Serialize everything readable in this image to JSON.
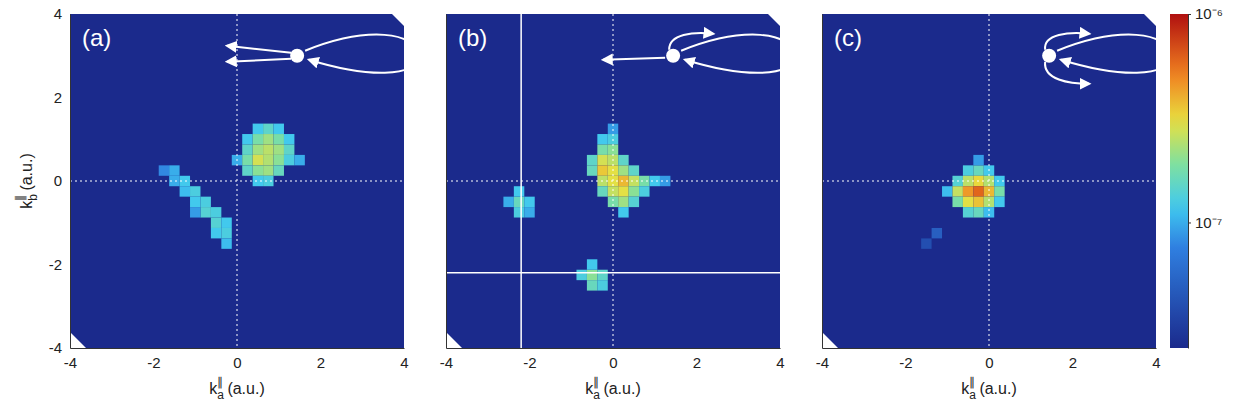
{
  "chart_data": [
    {
      "type": "heatmap",
      "label": "(a)",
      "xlabel": {
        "text": "k",
        "sub": "a",
        "sup": "∥",
        "unit": "(a.u.)"
      },
      "ylabel": {
        "text": "k",
        "sub": "b",
        "sup": "∥",
        "unit": "(a.u.)"
      },
      "xlim": [
        -4,
        4
      ],
      "ylim": [
        -4,
        4
      ],
      "xticks": [
        -4,
        -2,
        0,
        2,
        4
      ],
      "yticks": [
        -4,
        -2,
        0,
        2,
        4
      ],
      "guides": [
        {
          "axis": "x",
          "value": 0,
          "line_style": "dotted"
        },
        {
          "axis": "y",
          "value": 0,
          "line_style": "dotted"
        }
      ],
      "cell_size": 0.25,
      "cells": [
        [
          0.5,
          1.25,
          1.2e-07
        ],
        [
          0.75,
          1.25,
          1.5e-07
        ],
        [
          1.0,
          1.25,
          1.2e-07
        ],
        [
          0.25,
          1.0,
          1.2e-07
        ],
        [
          0.5,
          1.0,
          1.8e-07
        ],
        [
          0.75,
          1.0,
          2.2e-07
        ],
        [
          1.0,
          1.0,
          1.8e-07
        ],
        [
          1.25,
          1.0,
          1.2e-07
        ],
        [
          0.25,
          0.75,
          1.5e-07
        ],
        [
          0.5,
          0.75,
          2.2e-07
        ],
        [
          0.75,
          0.75,
          2.5e-07
        ],
        [
          1.0,
          0.75,
          2.2e-07
        ],
        [
          1.25,
          0.75,
          1.5e-07
        ],
        [
          0.0,
          0.5,
          1e-07
        ],
        [
          0.25,
          0.5,
          1.8e-07
        ],
        [
          0.5,
          0.5,
          2.8e-07
        ],
        [
          0.75,
          0.5,
          2.4e-07
        ],
        [
          1.0,
          0.5,
          2e-07
        ],
        [
          1.25,
          0.5,
          1.3e-07
        ],
        [
          1.5,
          0.5,
          1e-07
        ],
        [
          0.25,
          0.25,
          1.5e-07
        ],
        [
          0.5,
          0.25,
          2e-07
        ],
        [
          0.75,
          0.25,
          2.2e-07
        ],
        [
          1.0,
          0.25,
          1.6e-07
        ],
        [
          0.5,
          0.0,
          1.2e-07
        ],
        [
          0.75,
          0.0,
          1.3e-07
        ],
        [
          -1.75,
          0.25,
          8e-08
        ],
        [
          -1.5,
          0.25,
          1e-07
        ],
        [
          -1.5,
          0.0,
          1e-07
        ],
        [
          -1.25,
          0.0,
          1.2e-07
        ],
        [
          -1.25,
          -0.25,
          1.1e-07
        ],
        [
          -1.0,
          -0.25,
          1.3e-07
        ],
        [
          -1.0,
          -0.5,
          1.2e-07
        ],
        [
          -0.75,
          -0.5,
          1.3e-07
        ],
        [
          -0.75,
          -0.75,
          1.4e-07
        ],
        [
          -0.5,
          -0.75,
          1.3e-07
        ],
        [
          -0.5,
          -1.0,
          1.4e-07
        ],
        [
          -0.25,
          -1.0,
          1.2e-07
        ],
        [
          -0.5,
          -1.25,
          1.2e-07
        ],
        [
          -0.25,
          -1.25,
          1.3e-07
        ],
        [
          -0.25,
          -1.5,
          1.1e-07
        ],
        [
          -1.0,
          -0.75,
          9e-08
        ]
      ]
    },
    {
      "type": "heatmap",
      "label": "(b)",
      "xlabel": {
        "text": "k",
        "sub": "a",
        "sup": "∥",
        "unit": "(a.u.)"
      },
      "xlim": [
        -4,
        4
      ],
      "ylim": [
        -4,
        4
      ],
      "xticks": [
        -4,
        -2,
        0,
        2,
        4
      ],
      "yticks": [
        -4,
        -2,
        0,
        2,
        4
      ],
      "tick_labels": "x",
      "guides": [
        {
          "axis": "x",
          "value": 0,
          "line_style": "dotted"
        },
        {
          "axis": "y",
          "value": 0,
          "line_style": "dotted"
        },
        {
          "axis": "x",
          "value": -2.2,
          "line_style": "solid"
        },
        {
          "axis": "y",
          "value": -2.2,
          "line_style": "solid"
        }
      ],
      "cell_size": 0.25,
      "cells": [
        [
          -0.25,
          1.0,
          1.2e-07
        ],
        [
          0.0,
          1.0,
          1.3e-07
        ],
        [
          0.0,
          1.25,
          9e-08
        ],
        [
          -0.25,
          0.75,
          1.8e-07
        ],
        [
          0.0,
          0.75,
          2e-07
        ],
        [
          -0.5,
          0.5,
          1.5e-07
        ],
        [
          -0.25,
          0.5,
          2.8e-07
        ],
        [
          0.0,
          0.5,
          2.5e-07
        ],
        [
          0.25,
          0.5,
          1.5e-07
        ],
        [
          -0.5,
          0.25,
          1.6e-07
        ],
        [
          -0.25,
          0.25,
          3.5e-07
        ],
        [
          0.0,
          0.25,
          3e-07
        ],
        [
          0.25,
          0.25,
          2.2e-07
        ],
        [
          0.5,
          0.25,
          1.5e-07
        ],
        [
          -0.25,
          0.0,
          2.5e-07
        ],
        [
          0.0,
          0.0,
          3e-07
        ],
        [
          0.25,
          0.0,
          3.8e-07
        ],
        [
          0.5,
          0.0,
          2.6e-07
        ],
        [
          0.75,
          0.0,
          1.8e-07
        ],
        [
          1.0,
          0.0,
          1.2e-07
        ],
        [
          1.25,
          0.0,
          9e-08
        ],
        [
          -0.25,
          -0.25,
          1.6e-07
        ],
        [
          0.0,
          -0.25,
          2.6e-07
        ],
        [
          0.25,
          -0.25,
          3e-07
        ],
        [
          0.5,
          -0.25,
          2e-07
        ],
        [
          0.75,
          -0.25,
          1.3e-07
        ],
        [
          0.0,
          -0.5,
          1.8e-07
        ],
        [
          0.25,
          -0.5,
          2.2e-07
        ],
        [
          0.5,
          -0.5,
          1.4e-07
        ],
        [
          0.25,
          -0.75,
          1.2e-07
        ],
        [
          -2.5,
          -0.5,
          1e-07
        ],
        [
          -2.25,
          -0.5,
          1.6e-07
        ],
        [
          -2.0,
          -0.5,
          1.2e-07
        ],
        [
          -2.25,
          -0.25,
          1.2e-07
        ],
        [
          -2.25,
          -0.75,
          1.3e-07
        ],
        [
          -2.0,
          -0.75,
          1e-07
        ],
        [
          -0.75,
          -2.25,
          1.3e-07
        ],
        [
          -0.5,
          -2.25,
          2e-07
        ],
        [
          -0.25,
          -2.25,
          1.5e-07
        ],
        [
          -0.5,
          -2.5,
          1.6e-07
        ],
        [
          -0.25,
          -2.5,
          1.3e-07
        ],
        [
          -0.5,
          -2.0,
          1.2e-07
        ]
      ]
    },
    {
      "type": "heatmap",
      "label": "(c)",
      "xlabel": {
        "text": "k",
        "sub": "a",
        "sup": "∥",
        "unit": "(a.u.)"
      },
      "xlim": [
        -4,
        4
      ],
      "ylim": [
        -4,
        4
      ],
      "xticks": [
        -4,
        -2,
        0,
        2,
        4
      ],
      "yticks": [
        -4,
        -2,
        0,
        2,
        4
      ],
      "tick_labels": "x",
      "guides": [
        {
          "axis": "x",
          "value": 0,
          "line_style": "dotted"
        },
        {
          "axis": "y",
          "value": 0,
          "line_style": "dotted"
        }
      ],
      "cell_size": 0.25,
      "cells": [
        [
          -0.5,
          0.25,
          1.3e-07
        ],
        [
          -0.25,
          0.25,
          1.6e-07
        ],
        [
          0.0,
          0.25,
          1.2e-07
        ],
        [
          -0.25,
          0.5,
          9e-08
        ],
        [
          -0.75,
          0.0,
          1.4e-07
        ],
        [
          -0.5,
          0.0,
          2.5e-07
        ],
        [
          -0.25,
          0.0,
          3.2e-07
        ],
        [
          0.0,
          0.0,
          2.4e-07
        ],
        [
          0.25,
          0.0,
          1.2e-07
        ],
        [
          -1.0,
          -0.25,
          1.1e-07
        ],
        [
          -0.75,
          -0.25,
          2.6e-07
        ],
        [
          -0.5,
          -0.25,
          4.5e-07
        ],
        [
          -0.25,
          -0.25,
          6e-07
        ],
        [
          0.0,
          -0.25,
          3.8e-07
        ],
        [
          0.25,
          -0.25,
          1.8e-07
        ],
        [
          -0.75,
          -0.5,
          1.8e-07
        ],
        [
          -0.5,
          -0.5,
          3e-07
        ],
        [
          -0.25,
          -0.5,
          3.6e-07
        ],
        [
          0.0,
          -0.5,
          2.4e-07
        ],
        [
          0.25,
          -0.5,
          1.2e-07
        ],
        [
          -0.5,
          -0.75,
          1.4e-07
        ],
        [
          -0.25,
          -0.75,
          1.6e-07
        ],
        [
          0.0,
          -0.75,
          1.1e-07
        ],
        [
          -1.25,
          -1.25,
          5e-08
        ],
        [
          -1.5,
          -1.5,
          4e-08
        ]
      ],
      "colorbar": {
        "range": [
          2.5e-08,
          1e-06
        ],
        "log": true,
        "ticks": [
          {
            "value": 1e-06,
            "label": "10⁻⁶"
          },
          {
            "value": 1e-07,
            "label": "10⁻⁷"
          }
        ]
      }
    }
  ]
}
